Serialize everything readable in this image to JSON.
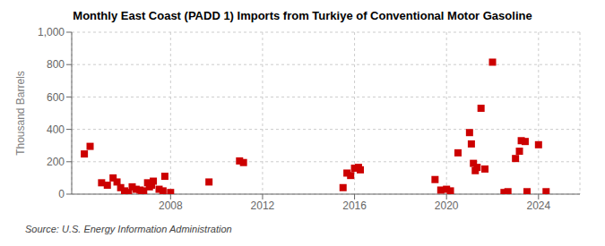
{
  "chart_data": {
    "type": "scatter",
    "title": "Monthly East Coast (PADD 1) Imports from Turkiye of Conventional Motor Gasoline",
    "ylabel": "Thousand Barrels",
    "source": "Source: U.S. Energy Information Administration",
    "color": "#cc0000",
    "marker": "square",
    "grid": true,
    "xlim": [
      2003.7,
      2025.8
    ],
    "xticks": [
      2008,
      2012,
      2016,
      2020,
      2024
    ],
    "ylim": [
      0,
      1000
    ],
    "yticks": [
      0,
      200,
      400,
      600,
      800,
      {
        "value": 1000,
        "label": "1,000"
      }
    ],
    "x": [
      2004.25,
      2004.5,
      2005.0,
      2005.25,
      2005.5,
      2005.67,
      2005.83,
      2006.0,
      2006.17,
      2006.33,
      2006.5,
      2006.67,
      2006.75,
      2006.83,
      2007.0,
      2007.08,
      2007.17,
      2007.25,
      2007.5,
      2007.67,
      2007.75,
      2008.0,
      2009.67,
      2011.0,
      2011.17,
      2015.5,
      2015.67,
      2015.83,
      2016.0,
      2016.17,
      2016.25,
      2019.5,
      2019.75,
      2020.0,
      2020.17,
      2020.5,
      2021.0,
      2021.08,
      2021.17,
      2021.25,
      2021.33,
      2021.5,
      2021.67,
      2022.0,
      2022.5,
      2022.67,
      2023.0,
      2023.17,
      2023.25,
      2023.42,
      2023.5,
      2024.0,
      2024.33
    ],
    "values": [
      248,
      295,
      70,
      55,
      100,
      75,
      40,
      20,
      10,
      45,
      30,
      25,
      15,
      20,
      70,
      45,
      55,
      80,
      30,
      20,
      110,
      10,
      75,
      205,
      195,
      40,
      130,
      115,
      160,
      165,
      150,
      90,
      25,
      30,
      20,
      255,
      380,
      310,
      190,
      145,
      165,
      530,
      155,
      815,
      10,
      15,
      220,
      265,
      330,
      325,
      15,
      305,
      15
    ]
  }
}
